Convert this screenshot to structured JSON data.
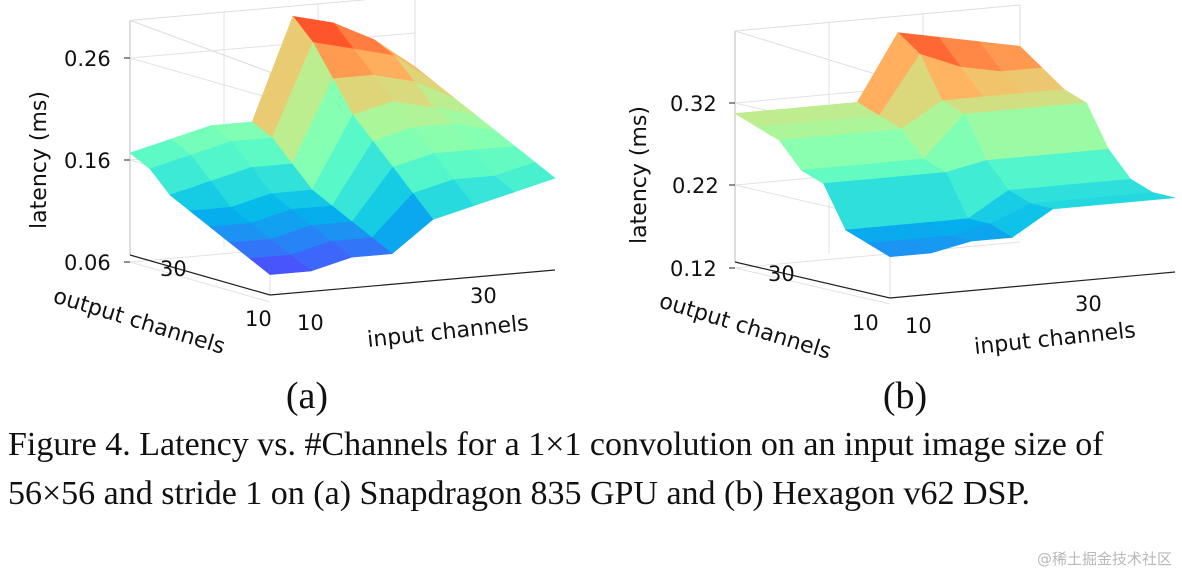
{
  "chart_data": [
    {
      "type": "surface",
      "panel_label": "(a)",
      "xlabel": "input channels",
      "ylabel": "output channels",
      "zlabel": "latency (ms)",
      "x_ticks": [
        "10",
        "30"
      ],
      "y_ticks": [
        "30",
        "10"
      ],
      "z_ticks": [
        "0.26",
        "0.16",
        "0.06"
      ],
      "zlim": [
        0.06,
        0.29
      ],
      "grid": true,
      "colormap": "rainbow",
      "input_channels": [
        6,
        12,
        18,
        24,
        30,
        36,
        42,
        48
      ],
      "output_channels": [
        6,
        12,
        18,
        24,
        30,
        36,
        42,
        48
      ],
      "latency": [
        [
          0.08,
          0.08,
          0.09,
          0.09,
          0.12,
          0.13,
          0.14,
          0.15
        ],
        [
          0.09,
          0.09,
          0.1,
          0.1,
          0.14,
          0.15,
          0.15,
          0.16
        ],
        [
          0.1,
          0.1,
          0.11,
          0.11,
          0.16,
          0.17,
          0.17,
          0.17
        ],
        [
          0.11,
          0.11,
          0.12,
          0.12,
          0.18,
          0.19,
          0.19,
          0.18
        ],
        [
          0.12,
          0.12,
          0.13,
          0.13,
          0.2,
          0.21,
          0.2,
          0.19
        ],
        [
          0.13,
          0.14,
          0.15,
          0.15,
          0.23,
          0.23,
          0.22,
          0.2
        ],
        [
          0.15,
          0.16,
          0.17,
          0.17,
          0.26,
          0.25,
          0.24,
          0.21
        ],
        [
          0.16,
          0.17,
          0.18,
          0.18,
          0.28,
          0.27,
          0.25,
          0.22
        ]
      ]
    },
    {
      "type": "surface",
      "panel_label": "(b)",
      "xlabel": "input channels",
      "ylabel": "output channels",
      "zlabel": "latency (ms)",
      "x_ticks": [
        "10",
        "30"
      ],
      "y_ticks": [
        "30",
        "10"
      ],
      "z_ticks": [
        "0.32",
        "0.22",
        "0.12"
      ],
      "zlim": [
        0.12,
        0.4
      ],
      "grid": true,
      "colormap": "rainbow",
      "input_channels": [
        6,
        12,
        18,
        24,
        30,
        36,
        42,
        48
      ],
      "output_channels": [
        6,
        12,
        18,
        24,
        30,
        36,
        42,
        48
      ],
      "latency": [
        [
          0.17,
          0.17,
          0.18,
          0.18,
          0.21,
          0.21,
          0.21,
          0.21
        ],
        [
          0.18,
          0.18,
          0.18,
          0.19,
          0.21,
          0.21,
          0.21,
          0.21
        ],
        [
          0.19,
          0.19,
          0.19,
          0.19,
          0.22,
          0.22,
          0.22,
          0.22
        ],
        [
          0.24,
          0.24,
          0.24,
          0.24,
          0.25,
          0.25,
          0.25,
          0.25
        ],
        [
          0.25,
          0.25,
          0.25,
          0.25,
          0.3,
          0.3,
          0.3,
          0.3
        ],
        [
          0.28,
          0.28,
          0.28,
          0.28,
          0.31,
          0.31,
          0.31,
          0.31
        ],
        [
          0.29,
          0.29,
          0.29,
          0.29,
          0.36,
          0.34,
          0.33,
          0.33
        ],
        [
          0.3,
          0.3,
          0.3,
          0.3,
          0.38,
          0.37,
          0.36,
          0.35
        ]
      ]
    }
  ],
  "caption": "Figure 4. Latency vs. #Channels for a 1×1 convolution on an input image size of 56×56 and stride 1 on (a) Snapdragon 835 GPU and (b) Hexagon v62 DSP.",
  "watermark": "@稀土掘金技术社区"
}
